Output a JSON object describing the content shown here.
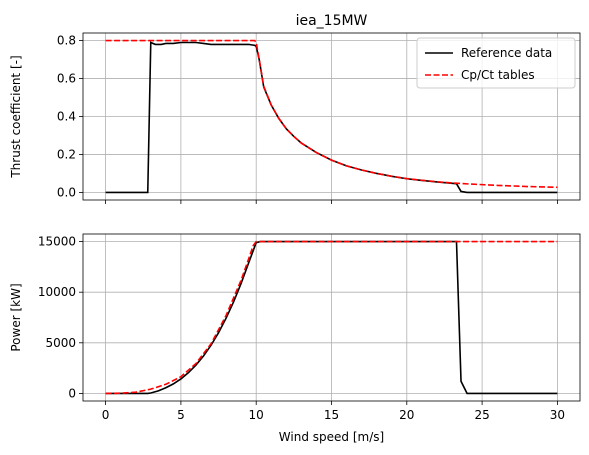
{
  "chart_data": [
    {
      "type": "line",
      "title": "iea_15MW",
      "xlabel": "",
      "ylabel": "Thrust coefficient [-]",
      "xlim": [
        -1.5,
        31.5
      ],
      "ylim": [
        -0.04,
        0.84
      ],
      "xticks": [
        0,
        5,
        10,
        15,
        20,
        25,
        30
      ],
      "yticks": [
        0.0,
        0.2,
        0.4,
        0.6,
        0.8
      ],
      "ytick_labels": [
        "0.0",
        "0.2",
        "0.4",
        "0.6",
        "0.8"
      ],
      "show_x_tick_labels": false,
      "grid": true,
      "legend": "top-right",
      "series": [
        {
          "name": "Reference data",
          "color": "#000000",
          "style": "solid",
          "x": [
            0,
            2.8,
            3,
            3.3,
            3.7,
            4,
            4.5,
            5,
            5.5,
            6,
            6.5,
            7,
            7.5,
            8,
            8.5,
            9,
            9.5,
            9.9,
            10,
            10.2,
            10.5,
            11,
            11.5,
            12,
            12.5,
            13,
            14,
            15,
            16,
            17,
            18,
            19,
            20,
            21,
            22,
            23,
            23.3,
            23.6,
            24,
            25,
            27,
            30
          ],
          "y": [
            0,
            0,
            0.79,
            0.78,
            0.78,
            0.785,
            0.785,
            0.79,
            0.79,
            0.79,
            0.785,
            0.78,
            0.78,
            0.78,
            0.78,
            0.78,
            0.78,
            0.775,
            0.77,
            0.7,
            0.555,
            0.46,
            0.39,
            0.335,
            0.295,
            0.26,
            0.21,
            0.17,
            0.14,
            0.118,
            0.1,
            0.085,
            0.072,
            0.063,
            0.055,
            0.048,
            0.046,
            0.005,
            0,
            0,
            0,
            0
          ]
        },
        {
          "name": "Cp/Ct tables",
          "color": "#ff0000",
          "style": "dashed",
          "x": [
            0,
            2,
            4,
            6,
            8,
            9,
            9.9,
            10,
            10.2,
            10.5,
            11,
            11.5,
            12,
            12.5,
            13,
            14,
            15,
            16,
            17,
            18,
            19,
            20,
            21,
            22,
            23,
            24,
            25,
            26,
            27,
            28,
            29,
            30
          ],
          "y": [
            0.8,
            0.8,
            0.8,
            0.8,
            0.8,
            0.8,
            0.8,
            0.79,
            0.7,
            0.56,
            0.46,
            0.39,
            0.335,
            0.295,
            0.26,
            0.21,
            0.17,
            0.14,
            0.118,
            0.1,
            0.085,
            0.073,
            0.064,
            0.056,
            0.05,
            0.045,
            0.041,
            0.037,
            0.034,
            0.031,
            0.029,
            0.027
          ]
        }
      ]
    },
    {
      "type": "line",
      "title": "",
      "xlabel": "Wind speed [m/s]",
      "ylabel": "Power [kW]",
      "xlim": [
        -1.5,
        31.5
      ],
      "ylim": [
        -750,
        15750
      ],
      "xticks": [
        0,
        5,
        10,
        15,
        20,
        25,
        30
      ],
      "xtick_labels": [
        "0",
        "5",
        "10",
        "15",
        "20",
        "25",
        "30"
      ],
      "yticks": [
        0,
        5000,
        10000,
        15000
      ],
      "ytick_labels": [
        "0",
        "5000",
        "10000",
        "15000"
      ],
      "show_x_tick_labels": true,
      "grid": true,
      "series": [
        {
          "name": "Reference data",
          "color": "#000000",
          "style": "solid",
          "x": [
            0,
            2.8,
            3,
            3.5,
            4,
            4.5,
            5,
            5.5,
            6,
            6.5,
            7,
            7.5,
            8,
            8.5,
            9,
            9.5,
            10,
            10.3,
            10.6,
            11,
            23.3,
            23.6,
            24,
            25,
            30
          ],
          "y": [
            0,
            0,
            40,
            250,
            560,
            940,
            1430,
            2050,
            2800,
            3700,
            4760,
            6000,
            7430,
            9050,
            10880,
            12900,
            14900,
            15000,
            15000,
            15000,
            15000,
            1200,
            0,
            0,
            0
          ]
        },
        {
          "name": "Cp/Ct tables",
          "color": "#ff0000",
          "style": "dashed",
          "x": [
            0,
            1,
            2,
            3,
            4,
            5,
            6,
            7,
            8,
            9,
            9.5,
            9.8,
            10,
            11,
            15,
            20,
            25,
            30
          ],
          "y": [
            0,
            20,
            120,
            420,
            900,
            1650,
            2950,
            4900,
            7700,
            11200,
            13300,
            14600,
            15000,
            15000,
            15000,
            15000,
            15000,
            15000
          ]
        }
      ]
    }
  ]
}
